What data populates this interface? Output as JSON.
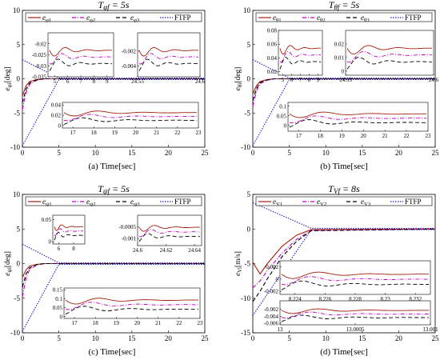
{
  "figure": {
    "colors": {
      "e1": "#a0200e",
      "e2": "#c000c0",
      "e3": "#000000",
      "ftfp": "#1f1fd0",
      "band": "#f3c7cf"
    }
  },
  "chart_data": [
    {
      "id": "a",
      "type": "line",
      "title": "T_φf = 5s",
      "caption": "(a) Time[sec]",
      "ylabel": "e_φi[deg]",
      "xlim": [
        0,
        25
      ],
      "ylim": [
        -10,
        10
      ],
      "xticks": [
        0,
        5,
        10,
        15,
        20,
        25
      ],
      "yticks": [
        10,
        5,
        0,
        -5,
        -10
      ],
      "legend": [
        "e_φ1",
        "e_φ2",
        "e_φ3",
        "FTFP"
      ],
      "ftfp": {
        "upper": [
          [
            0,
            2.8
          ],
          [
            5,
            0.1
          ],
          [
            25,
            0.1
          ]
        ],
        "lower": [
          [
            0,
            -9.8
          ],
          [
            5,
            -0.1
          ],
          [
            25,
            -0.1
          ]
        ]
      },
      "series": [
        {
          "name": "e_φ1",
          "points": [
            [
              0,
              -2.5
            ],
            [
              0.5,
              -1.0
            ],
            [
              1,
              -0.4
            ],
            [
              2,
              -0.1
            ],
            [
              3,
              0
            ],
            [
              25,
              0
            ]
          ]
        },
        {
          "name": "e_φ2",
          "points": [
            [
              0,
              -4.5
            ],
            [
              0.5,
              -2.0
            ],
            [
              1,
              -0.8
            ],
            [
              2,
              -0.2
            ],
            [
              3,
              0
            ],
            [
              25,
              0
            ]
          ]
        },
        {
          "name": "e_φ3",
          "points": [
            [
              0,
              -3.5
            ],
            [
              0.5,
              -1.5
            ],
            [
              1,
              -0.6
            ],
            [
              2,
              -0.15
            ],
            [
              3,
              0
            ],
            [
              25,
              0
            ]
          ]
        }
      ],
      "insets": [
        {
          "xlim": [
            4.5,
            9.5
          ],
          "ylim": [
            -0.035,
            -0.015
          ],
          "xticks": [
            5,
            6,
            7,
            8,
            9
          ],
          "yticks": [
            -0.02,
            -0.025,
            -0.03,
            -0.035
          ]
        },
        {
          "xlim": [
            24.55,
            24.6
          ],
          "ylim": [
            -0.0055,
            0.0005
          ],
          "xticks": [
            24.55,
            24.6
          ],
          "yticks": [
            -0.002,
            -0.004
          ]
        },
        {
          "xlim": [
            16.5,
            23
          ],
          "ylim": [
            -0.005,
            0.045
          ],
          "xticks": [
            17,
            18,
            19,
            20,
            21,
            22,
            23
          ],
          "yticks": [
            0.04,
            0.02,
            0
          ]
        }
      ]
    },
    {
      "id": "b",
      "type": "line",
      "title": "T_θf = 5s",
      "caption": "(b) Time[sec]",
      "ylabel": "e_θi[deg]",
      "xlim": [
        0,
        25
      ],
      "ylim": [
        -10,
        10
      ],
      "xticks": [
        0,
        5,
        10,
        15,
        20,
        25
      ],
      "yticks": [
        10,
        5,
        0,
        -5,
        -10
      ],
      "legend": [
        "e_θ1",
        "e_θ2",
        "e_θ3",
        "FTFP"
      ],
      "ftfp": {
        "upper": [
          [
            0,
            2.8
          ],
          [
            5,
            0.1
          ],
          [
            25,
            0.1
          ]
        ],
        "lower": [
          [
            0,
            -9.8
          ],
          [
            5,
            -0.1
          ],
          [
            25,
            -0.1
          ]
        ]
      },
      "series": [
        {
          "name": "e_θ1",
          "points": [
            [
              0,
              -2.2
            ],
            [
              0.5,
              -1.0
            ],
            [
              1,
              -0.4
            ],
            [
              2,
              -0.1
            ],
            [
              3,
              0
            ],
            [
              25,
              0
            ]
          ]
        },
        {
          "name": "e_θ2",
          "points": [
            [
              0,
              -4.0
            ],
            [
              0.5,
              -1.8
            ],
            [
              1,
              -0.7
            ],
            [
              2,
              -0.2
            ],
            [
              3,
              0
            ],
            [
              25,
              0
            ]
          ]
        },
        {
          "name": "e_θ3",
          "points": [
            [
              0,
              -3.2
            ],
            [
              0.5,
              -1.4
            ],
            [
              1,
              -0.55
            ],
            [
              2,
              -0.15
            ],
            [
              3,
              0
            ],
            [
              25,
              0
            ]
          ]
        }
      ],
      "insets": [
        {
          "xlim": [
            4.5,
            9.5
          ],
          "ylim": [
            0.015,
            0.08
          ],
          "xticks": [
            5,
            6,
            7,
            8,
            9
          ],
          "yticks": [
            0.08,
            0.06,
            0.04,
            0.02
          ]
        },
        {
          "xlim": [
            24.55,
            24.6
          ],
          "ylim": [
            -0.003,
            0.03
          ],
          "xticks": [
            24.55,
            24.6
          ],
          "yticks": [
            0.02,
            0.01,
            0
          ]
        },
        {
          "xlim": [
            16.5,
            23
          ],
          "ylim": [
            -0.03,
            0.12
          ],
          "xticks": [
            17,
            18,
            19,
            20,
            21,
            22,
            23
          ],
          "yticks": [
            0.1,
            0.05,
            0
          ]
        }
      ]
    },
    {
      "id": "c",
      "type": "line",
      "title": "T_ψf = 5s",
      "caption": "(c) Time[sec]",
      "ylabel": "e_ψi[deg]",
      "xlim": [
        0,
        25
      ],
      "ylim": [
        -10,
        10
      ],
      "xticks": [
        0,
        5,
        10,
        15,
        20,
        25
      ],
      "yticks": [
        10,
        5,
        0,
        -5,
        -10
      ],
      "legend": [
        "e_ψ1",
        "e_ψ2",
        "e_ψ3",
        "FTFP"
      ],
      "ftfp": {
        "upper": [
          [
            0,
            2.8
          ],
          [
            5,
            0.1
          ],
          [
            25,
            0.1
          ]
        ],
        "lower": [
          [
            0,
            -9.8
          ],
          [
            5,
            -0.1
          ],
          [
            25,
            -0.1
          ]
        ]
      },
      "series": [
        {
          "name": "e_ψ1",
          "points": [
            [
              0,
              -2.0
            ],
            [
              0.5,
              -0.9
            ],
            [
              1,
              -0.35
            ],
            [
              2,
              -0.1
            ],
            [
              3,
              0
            ],
            [
              25,
              0
            ]
          ]
        },
        {
          "name": "e_ψ2",
          "points": [
            [
              0,
              -4.8
            ],
            [
              0.5,
              -2.1
            ],
            [
              1,
              -0.8
            ],
            [
              2,
              -0.2
            ],
            [
              3,
              0
            ],
            [
              25,
              0
            ]
          ]
        },
        {
          "name": "e_ψ3",
          "points": [
            [
              0,
              -3.4
            ],
            [
              0.5,
              -1.5
            ],
            [
              1,
              -0.6
            ],
            [
              2,
              -0.15
            ],
            [
              3,
              0
            ],
            [
              25,
              0
            ]
          ]
        }
      ],
      "insets": [
        {
          "xlim": [
            5.2,
            9.5
          ],
          "ylim": [
            -0.005,
            0.06
          ],
          "xticks": [
            6,
            8
          ],
          "yticks": [
            0.05,
            0
          ]
        },
        {
          "xlim": [
            24.6,
            24.645
          ],
          "ylim": [
            -0.0013,
            0.0
          ],
          "xticks": [
            24.6,
            24.62,
            24.64
          ],
          "yticks": [
            -0.0005,
            -0.001
          ]
        },
        {
          "xlim": [
            16.5,
            23
          ],
          "ylim": [
            -0.01,
            0.16
          ],
          "xticks": [
            17,
            18,
            19,
            20,
            21,
            22,
            23
          ],
          "yticks": [
            0.15,
            0.1,
            0.05,
            0
          ]
        }
      ]
    },
    {
      "id": "d",
      "type": "line",
      "title": "T_Vf = 8s",
      "caption": "(d) Time[sec]",
      "ylabel": "e_Vi[m/s]",
      "xlim": [
        0,
        25
      ],
      "ylim": [
        -15,
        5
      ],
      "xticks": [
        0,
        5,
        10,
        15,
        20,
        25
      ],
      "yticks": [
        5,
        0,
        -5,
        -10,
        -15
      ],
      "legend": [
        "e_V1",
        "e_V2",
        "e_V3",
        "FTFP"
      ],
      "ftfp": {
        "upper": [
          [
            0,
            3.8
          ],
          [
            8,
            0.1
          ],
          [
            25,
            0.1
          ]
        ],
        "lower": [
          [
            0,
            -12.5
          ],
          [
            8,
            -0.1
          ],
          [
            25,
            -0.1
          ]
        ]
      },
      "series": [
        {
          "name": "e_V1",
          "points": [
            [
              0,
              -4.8
            ],
            [
              1,
              -6.5
            ],
            [
              2,
              -5.0
            ],
            [
              4,
              -2.5
            ],
            [
              6,
              -0.9
            ],
            [
              8,
              -0.1
            ],
            [
              25,
              0
            ]
          ]
        },
        {
          "name": "e_V2",
          "points": [
            [
              0,
              -8.5
            ],
            [
              1,
              -7.5
            ],
            [
              2,
              -6.0
            ],
            [
              4,
              -3.5
            ],
            [
              6,
              -1.5
            ],
            [
              8,
              -0.2
            ],
            [
              25,
              0
            ]
          ]
        },
        {
          "name": "e_V3",
          "points": [
            [
              0,
              -10.5
            ],
            [
              1,
              -9.0
            ],
            [
              2,
              -7.2
            ],
            [
              4,
              -4.0
            ],
            [
              6,
              -1.8
            ],
            [
              8,
              -0.25
            ],
            [
              25,
              0
            ]
          ]
        }
      ],
      "insets": [
        {
          "xlim": [
            8.223,
            8.233
          ],
          "ylim": [
            -0.0025,
            0.003
          ],
          "xticks": [
            8.224,
            8.226,
            8.228,
            8.23,
            8.232
          ],
          "yticks": [
            0.002,
            0,
            -0.002
          ]
        },
        {
          "xlim": [
            13,
            13.001
          ],
          "ylim": [
            -0.0065,
            0.0005
          ],
          "xticks": [
            13,
            13.0005,
            13.001
          ],
          "yticks": [
            -0.002,
            -0.004,
            -0.006
          ]
        }
      ]
    }
  ]
}
